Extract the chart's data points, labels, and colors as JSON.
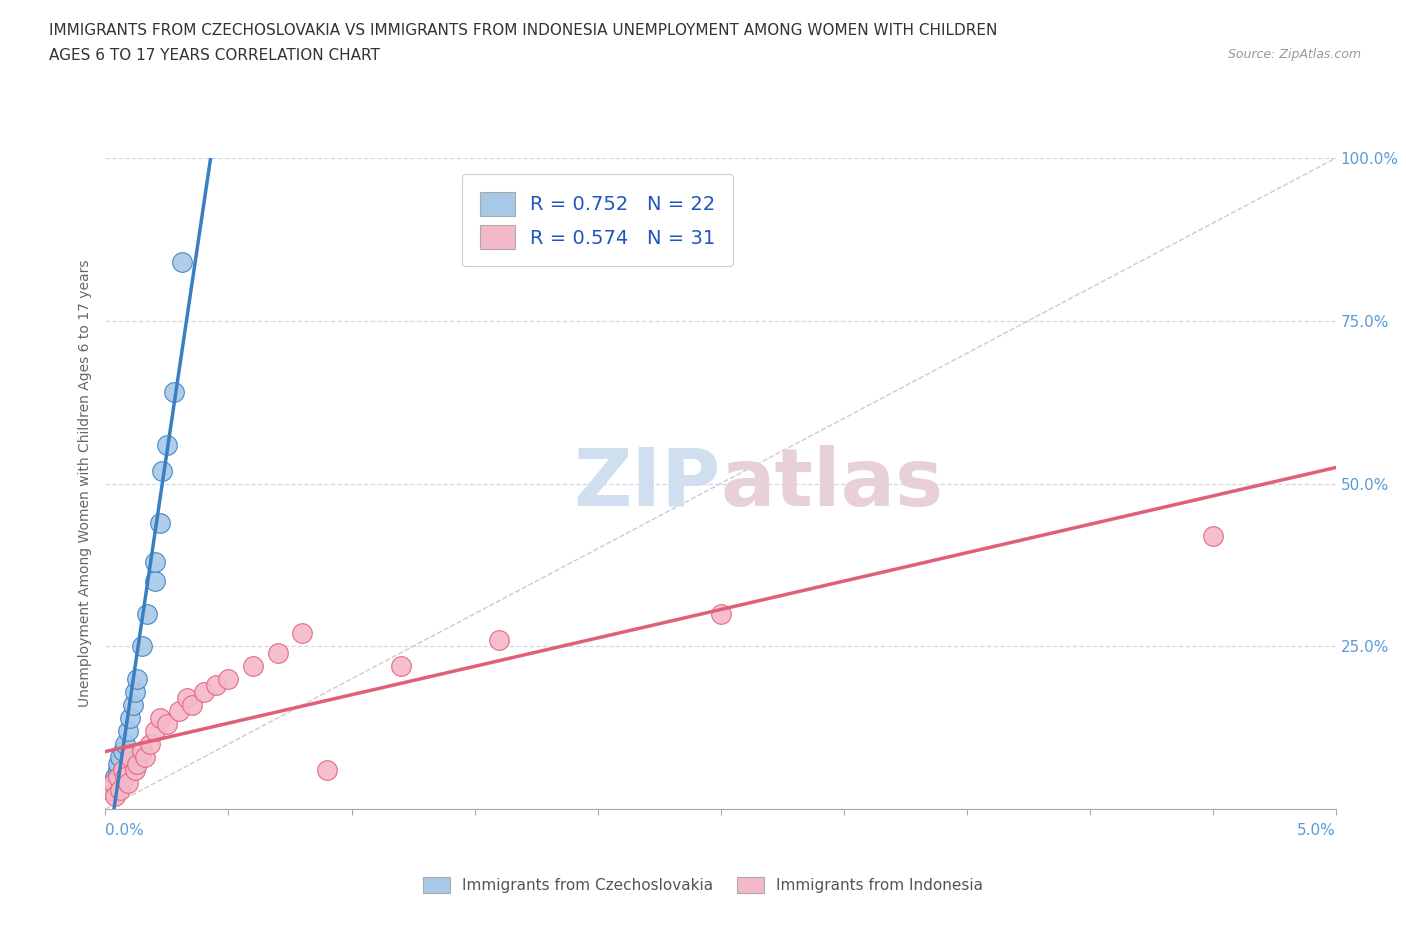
{
  "title_line1": "IMMIGRANTS FROM CZECHOSLOVAKIA VS IMMIGRANTS FROM INDONESIA UNEMPLOYMENT AMONG WOMEN WITH CHILDREN",
  "title_line2": "AGES 6 TO 17 YEARS CORRELATION CHART",
  "source": "Source: ZipAtlas.com",
  "ylabel": "Unemployment Among Women with Children Ages 6 to 17 years",
  "watermark_zip": "ZIP",
  "watermark_atlas": "atlas",
  "legend_label_1": "Immigrants from Czechoslovakia",
  "legend_label_2": "Immigrants from Indonesia",
  "color_czech": "#a8c8e8",
  "color_indo": "#f5b8c8",
  "line_color_czech": "#3a7fc1",
  "line_color_indo": "#e0607a",
  "background_color": "#ffffff",
  "grid_color": "#d0d8e8",
  "xlim": [
    0.0,
    0.05
  ],
  "ylim": [
    0.0,
    1.0
  ],
  "yticks": [
    0.0,
    0.25,
    0.5,
    0.75,
    1.0
  ],
  "ytick_labels": [
    "",
    "25.0%",
    "50.0%",
    "75.0%",
    "100.0%"
  ],
  "czech_x": [
    0.0002,
    0.0003,
    0.0004,
    0.0005,
    0.0005,
    0.0006,
    0.0007,
    0.0008,
    0.0009,
    0.001,
    0.0011,
    0.0012,
    0.0013,
    0.0015,
    0.0017,
    0.002,
    0.002,
    0.0022,
    0.0023,
    0.0025,
    0.0028,
    0.0031
  ],
  "czech_y": [
    0.03,
    0.04,
    0.05,
    0.06,
    0.07,
    0.08,
    0.09,
    0.1,
    0.12,
    0.14,
    0.16,
    0.18,
    0.2,
    0.25,
    0.3,
    0.35,
    0.38,
    0.44,
    0.52,
    0.56,
    0.64,
    0.84
  ],
  "indo_x": [
    0.0002,
    0.0003,
    0.0004,
    0.0005,
    0.0006,
    0.0007,
    0.0008,
    0.0009,
    0.001,
    0.0012,
    0.0013,
    0.0015,
    0.0016,
    0.0018,
    0.002,
    0.0022,
    0.0025,
    0.003,
    0.0033,
    0.0035,
    0.004,
    0.0045,
    0.005,
    0.006,
    0.007,
    0.008,
    0.009,
    0.012,
    0.016,
    0.025,
    0.045
  ],
  "indo_y": [
    0.03,
    0.04,
    0.02,
    0.05,
    0.03,
    0.06,
    0.05,
    0.04,
    0.08,
    0.06,
    0.07,
    0.09,
    0.08,
    0.1,
    0.12,
    0.14,
    0.13,
    0.15,
    0.17,
    0.16,
    0.18,
    0.19,
    0.2,
    0.22,
    0.24,
    0.27,
    0.06,
    0.22,
    0.26,
    0.3,
    0.42
  ]
}
